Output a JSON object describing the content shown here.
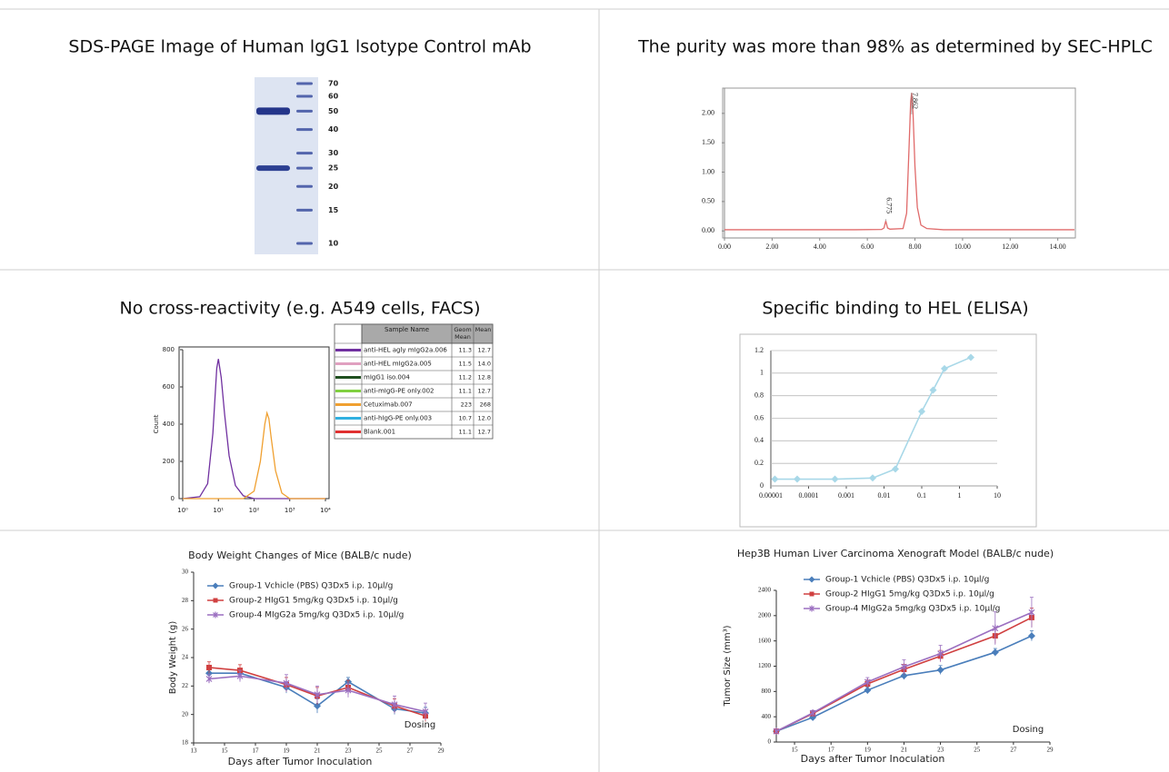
{
  "panels": [
    {
      "title": "SDS-PAGE lmage of Human lgG1 lsotype Control mAb",
      "figure": {
        "type": "gel",
        "markers": [
          70,
          60,
          50,
          40,
          30,
          25,
          20,
          15,
          10
        ]
      }
    },
    {
      "title": "The purity was more than 98% as determined by SEC-HPLC",
      "figure": {
        "type": "line",
        "color": "#e06a6a",
        "x": [
          0,
          5.5,
          6.6,
          6.7,
          6.775,
          6.85,
          6.95,
          7.5,
          7.65,
          7.75,
          7.82,
          7.862,
          7.92,
          8.0,
          8.1,
          8.25,
          8.5,
          9.2,
          14.7
        ],
        "values": [
          0.02,
          0.02,
          0.025,
          0.05,
          0.17,
          0.05,
          0.03,
          0.04,
          0.3,
          1.4,
          2.2,
          2.35,
          2.0,
          1.1,
          0.4,
          0.1,
          0.04,
          0.02,
          0.02
        ],
        "xlim": [
          0,
          14.7
        ],
        "xticks": [
          {
            "value": 0,
            "label": "0.00"
          },
          {
            "value": 2,
            "label": "2.00"
          },
          {
            "value": 4,
            "label": "4.00"
          },
          {
            "value": 6,
            "label": "6.00"
          },
          {
            "value": 8,
            "label": "8.00"
          },
          {
            "value": 10,
            "label": "10.00"
          },
          {
            "value": 12,
            "label": "12.00"
          },
          {
            "value": 14,
            "label": "14.00"
          }
        ],
        "ylim": [
          -0.12,
          2.43
        ],
        "yticks": [
          {
            "value": 0,
            "label": "0.00"
          },
          {
            "value": 0.5,
            "label": "0.50"
          },
          {
            "value": 1,
            "label": "1.00"
          },
          {
            "value": 1.5,
            "label": "1.50"
          },
          {
            "value": 2,
            "label": "2.00"
          }
        ],
        "peaks": [
          6.775,
          7.862
        ]
      }
    },
    {
      "title": "No cross-reactivity (e.g. A549 cells, FACS)",
      "figure": {
        "type": "line",
        "xscale": "log",
        "xlim": [
          1,
          10000
        ],
        "xticks": [
          {
            "value": 1,
            "label": "10⁰"
          },
          {
            "value": 10,
            "label": "10¹"
          },
          {
            "value": 100,
            "label": "10²"
          },
          {
            "value": 1000,
            "label": "10³"
          },
          {
            "value": 10000,
            "label": "10⁴"
          }
        ],
        "ylim": [
          0,
          800
        ],
        "yticks": [
          0,
          200,
          400,
          600,
          800
        ],
        "ylabel": "Count",
        "series": [
          {
            "color": "#7030a0",
            "x": [
              1,
              3,
              5,
              7,
              9,
              10,
              12,
              15,
              20,
              30,
              50,
              100,
              10000
            ],
            "values": [
              0,
              10,
              80,
              350,
              700,
              750,
              650,
              450,
              230,
              70,
              15,
              0,
              0
            ]
          },
          {
            "color": "#f0a030",
            "x": [
              1,
              50,
              100,
              150,
              200,
              230,
              260,
              300,
              400,
              600,
              1000,
              10000
            ],
            "values": [
              0,
              0,
              40,
              200,
              400,
              460,
              430,
              330,
              150,
              30,
              0,
              0
            ]
          }
        ],
        "table": {
          "header": [
            "Sample Name",
            "Geom Mean",
            "Mean"
          ],
          "rows": [
            {
              "color": "#7030a0",
              "cells": [
                "anti-HEL agly mIgG2a.006",
                "11.3",
                "12.7"
              ]
            },
            {
              "color": "#e0a0c0",
              "cells": [
                "anti-HEL mIgG2a.005",
                "11.5",
                "14.0"
              ]
            },
            {
              "color": "#205020",
              "cells": [
                "mIgG1 iso.004",
                "11.2",
                "12.8"
              ]
            },
            {
              "color": "#80d040",
              "cells": [
                "anti-mIgG-PE only.002",
                "11.1",
                "12.7"
              ]
            },
            {
              "color": "#f0a030",
              "cells": [
                "Cetuximab.007",
                "223",
                "268"
              ]
            },
            {
              "color": "#30b0e0",
              "cells": [
                "anti-hIgG-PE only.003",
                "10.7",
                "12.0"
              ]
            },
            {
              "color": "#e03030",
              "cells": [
                "Blank.001",
                "11.1",
                "12.7"
              ]
            }
          ]
        }
      }
    },
    {
      "title": "Specific binding to HEL (ELISA)",
      "figure": {
        "type": "line",
        "xscale": "log",
        "xlim": [
          1e-05,
          10
        ],
        "grid": true,
        "color": "#a8d8e8",
        "marker": "diamond",
        "xticks": [
          1e-05,
          0.0001,
          0.001,
          0.01,
          0.1,
          1,
          10
        ],
        "ylim": [
          0,
          1.2
        ],
        "yticks": [
          0,
          0.2,
          0.4,
          0.6,
          0.8,
          1,
          1.2
        ],
        "x": [
          1.28e-05,
          5e-05,
          0.0005,
          0.005,
          0.02,
          0.1,
          0.2,
          0.4,
          2
        ],
        "values": [
          0.06,
          0.06,
          0.06,
          0.07,
          0.15,
          0.66,
          0.85,
          1.04,
          1.14
        ]
      }
    },
    {
      "figure": {
        "type": "line",
        "title": "Body Weight Changes of Mice (BALB/c nude)",
        "xlabel": "Days after Tumor Inoculation",
        "ylabel": "Body Weight (g)",
        "annotation": "Dosing",
        "xlim": [
          13,
          29
        ],
        "xticks": [
          13,
          15,
          17,
          19,
          21,
          23,
          25,
          27,
          29
        ],
        "ylim": [
          18,
          30
        ],
        "yticks": [
          18,
          20,
          22,
          24,
          26,
          28,
          30
        ],
        "x": [
          14,
          16,
          19,
          21,
          23,
          26,
          28
        ],
        "series": [
          {
            "name": "Group-1 Vchicle (PBS) Q3Dx5 i.p. 10μl/g",
            "color": "#4a7ebb",
            "marker": "diamond",
            "values": [
              22.9,
              22.9,
              21.9,
              20.6,
              22.3,
              20.4,
              20.1
            ],
            "errors": [
              0.3,
              0.3,
              0.4,
              0.5,
              0.3,
              0.4,
              0.4
            ]
          },
          {
            "name": "Group-2 HIgG1 5mg/kg Q3Dx5 i.p. 10μl/g",
            "color": "#d04040",
            "marker": "square",
            "values": [
              23.3,
              23.1,
              22.1,
              21.3,
              21.9,
              20.6,
              19.9
            ],
            "errors": [
              0.4,
              0.4,
              0.5,
              0.6,
              0.5,
              0.5,
              0.4
            ]
          },
          {
            "name": "Group-4 MIgG2a 5mg/kg Q3Dx5 i.p. 10μl/g",
            "color": "#9b6fc0",
            "marker": "cross",
            "values": [
              22.5,
              22.7,
              22.2,
              21.4,
              21.7,
              20.7,
              20.2
            ],
            "errors": [
              0.3,
              0.4,
              0.6,
              0.6,
              0.5,
              0.6,
              0.6
            ]
          }
        ]
      }
    },
    {
      "figure": {
        "type": "line",
        "title": "Hep3B Human Liver Carcinoma Xenograft Model (BALB/c nude)",
        "xlabel": "Days after Tumor Inoculation",
        "ylabel": "Tumor Size (mm³)",
        "annotation": "Dosing",
        "xlim": [
          14,
          29
        ],
        "xticks": [
          15,
          17,
          19,
          21,
          23,
          25,
          27,
          29
        ],
        "ylim": [
          0,
          2400
        ],
        "yticks": [
          0,
          400,
          800,
          1200,
          1600,
          2000,
          2400
        ],
        "x": [
          14,
          16,
          19,
          21,
          23,
          26,
          28
        ],
        "series": [
          {
            "name": "Group-1 Vchicle (PBS) Q3Dx5 i.p. 10μl/g",
            "color": "#4a7ebb",
            "marker": "diamond",
            "values": [
              170,
              390,
              820,
              1050,
              1140,
              1420,
              1680
            ],
            "errors": [
              20,
              30,
              50,
              60,
              70,
              60,
              80
            ]
          },
          {
            "name": "Group-2 HIgG1 5mg/kg Q3Dx5 i.p. 10μl/g",
            "color": "#d04040",
            "marker": "square",
            "values": [
              170,
              450,
              920,
              1150,
              1360,
              1680,
              1970
            ],
            "errors": [
              20,
              40,
              60,
              80,
              90,
              120,
              150
            ]
          },
          {
            "name": "Group-4 MIgG2a 5mg/kg Q3Dx5 i.p. 10μl/g",
            "color": "#9b6fc0",
            "marker": "cross",
            "values": [
              170,
              460,
              950,
              1190,
              1400,
              1800,
              2050
            ],
            "errors": [
              20,
              40,
              70,
              110,
              130,
              260,
              240
            ]
          }
        ]
      }
    }
  ]
}
